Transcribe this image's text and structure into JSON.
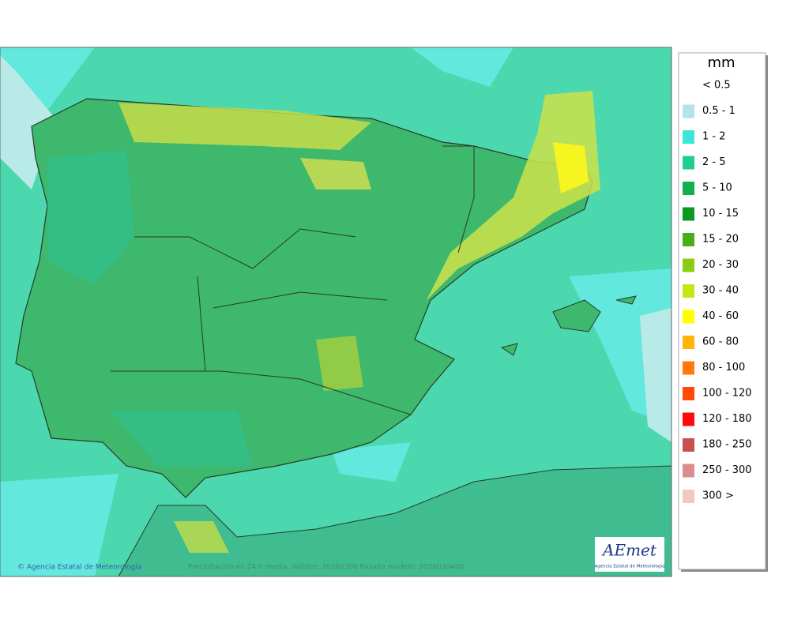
{
  "legend": {
    "title": "mm",
    "items": [
      {
        "label": "< 0.5",
        "color": "#ffffff"
      },
      {
        "label": "0.5 - 1",
        "color": "#b4e4e4"
      },
      {
        "label": "1 - 2",
        "color": "#3ae8d8"
      },
      {
        "label": "2 - 5",
        "color": "#1ed08c"
      },
      {
        "label": "5 - 10",
        "color": "#10b050"
      },
      {
        "label": "10 - 15",
        "color": "#0a9a1e"
      },
      {
        "label": "15 - 20",
        "color": "#46b016"
      },
      {
        "label": "20 - 30",
        "color": "#8ccc10"
      },
      {
        "label": "30 - 40",
        "color": "#c8e414"
      },
      {
        "label": "40 - 60",
        "color": "#ffff00"
      },
      {
        "label": "60 - 80",
        "color": "#ffb40a"
      },
      {
        "label": "80 - 100",
        "color": "#ff7a0a"
      },
      {
        "label": "100 - 120",
        "color": "#ff4a0a"
      },
      {
        "label": "120 - 180",
        "color": "#ff0a0a"
      },
      {
        "label": "180 - 250",
        "color": "#c85050"
      },
      {
        "label": "250 - 300",
        "color": "#dc8c8c"
      },
      {
        "label": "300 >",
        "color": "#f0c8c8"
      }
    ]
  },
  "footer": {
    "credit": "© Agencia Estatal de Meteorología",
    "caption": "Precipitación en 24 h media. Validez: 20260306 Pasada modelo: 2026030400"
  },
  "logo": {
    "text": "AEmet",
    "subtitle": "Agencia Estatal de Meteorología"
  }
}
